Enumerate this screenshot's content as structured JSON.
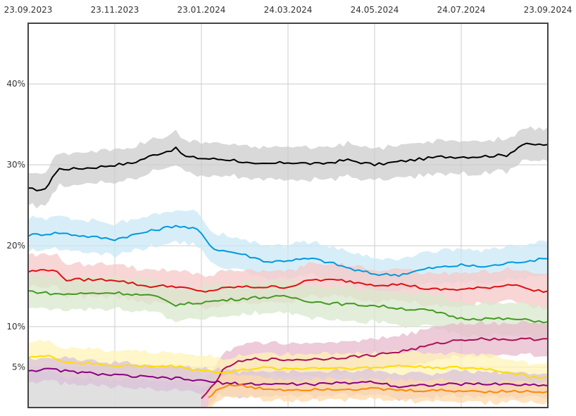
{
  "chart_data": {
    "type": "line",
    "title": "",
    "xlabel": "",
    "ylabel": "",
    "x_axis": {
      "position": "top",
      "tick_labels": [
        "23.09.2023",
        "23.11.2023",
        "23.01.2024",
        "24.03.2024",
        "24.05.2024",
        "24.07.2024",
        "23.09.2024"
      ]
    },
    "y_axis": {
      "position": "left",
      "range": [
        0,
        47.5
      ],
      "ticks": [
        {
          "value": 5,
          "label": "5%"
        },
        {
          "value": 10,
          "label": "10%"
        },
        {
          "value": 20,
          "label": "20%"
        },
        {
          "value": 30,
          "label": "30%"
        },
        {
          "value": 40,
          "label": "40%"
        }
      ]
    },
    "x_range": [
      "2023-09-23",
      "2024-09-23"
    ],
    "grid": true,
    "legend": "none",
    "band_shaded_region": {
      "color": "#dddddd",
      "until": "2024-01-23",
      "max": 5
    },
    "series": [
      {
        "color": "#000000",
        "band_color": "#cccccc",
        "band_halfwidth": 2.0,
        "points": [
          [
            "2023-09-23",
            27.0
          ],
          [
            "2023-10-05",
            26.9
          ],
          [
            "2023-10-10",
            28.5
          ],
          [
            "2023-10-15",
            29.5
          ],
          [
            "2023-10-25",
            29.5
          ],
          [
            "2023-11-10",
            29.7
          ],
          [
            "2023-11-23",
            30.0
          ],
          [
            "2023-12-05",
            30.2
          ],
          [
            "2023-12-20",
            31.2
          ],
          [
            "2024-01-05",
            32.0
          ],
          [
            "2024-01-12",
            31.0
          ],
          [
            "2024-01-23",
            30.8
          ],
          [
            "2024-02-15",
            30.6
          ],
          [
            "2024-03-01",
            30.0
          ],
          [
            "2024-03-24",
            30.3
          ],
          [
            "2024-04-15",
            30.1
          ],
          [
            "2024-05-05",
            30.6
          ],
          [
            "2024-05-24",
            30.0
          ],
          [
            "2024-06-15",
            30.5
          ],
          [
            "2024-07-10",
            31.0
          ],
          [
            "2024-08-01",
            31.0
          ],
          [
            "2024-08-25",
            31.2
          ],
          [
            "2024-09-05",
            32.5
          ],
          [
            "2024-09-23",
            32.5
          ]
        ]
      },
      {
        "color": "#0099dd",
        "band_color": "#c9e8f6",
        "band_halfwidth": 2.0,
        "points": [
          [
            "2023-09-23",
            21.3
          ],
          [
            "2023-10-15",
            21.6
          ],
          [
            "2023-11-01",
            21.2
          ],
          [
            "2023-11-23",
            20.8
          ],
          [
            "2023-12-10",
            21.5
          ],
          [
            "2024-01-05",
            22.5
          ],
          [
            "2024-01-20",
            22.0
          ],
          [
            "2024-02-01",
            19.6
          ],
          [
            "2024-02-20",
            19.0
          ],
          [
            "2024-03-10",
            18.0
          ],
          [
            "2024-03-24",
            18.2
          ],
          [
            "2024-04-10",
            18.4
          ],
          [
            "2024-04-25",
            17.8
          ],
          [
            "2024-05-10",
            17.0
          ],
          [
            "2024-05-24",
            16.5
          ],
          [
            "2024-06-10",
            16.4
          ],
          [
            "2024-07-01",
            17.2
          ],
          [
            "2024-07-24",
            17.6
          ],
          [
            "2024-08-10",
            17.4
          ],
          [
            "2024-09-01",
            18.0
          ],
          [
            "2024-09-23",
            18.4
          ]
        ]
      },
      {
        "color": "#dd1111",
        "band_color": "#f6c8c8",
        "band_halfwidth": 2.0,
        "points": [
          [
            "2023-09-23",
            16.8
          ],
          [
            "2023-10-10",
            17.1
          ],
          [
            "2023-10-20",
            15.8
          ],
          [
            "2023-11-23",
            15.8
          ],
          [
            "2023-12-15",
            15.0
          ],
          [
            "2024-01-05",
            15.0
          ],
          [
            "2024-01-23",
            14.3
          ],
          [
            "2024-02-15",
            14.9
          ],
          [
            "2024-03-24",
            14.9
          ],
          [
            "2024-04-10",
            15.8
          ],
          [
            "2024-05-01",
            15.7
          ],
          [
            "2024-05-24",
            15.2
          ],
          [
            "2024-06-15",
            15.2
          ],
          [
            "2024-07-01",
            14.6
          ],
          [
            "2024-07-24",
            14.6
          ],
          [
            "2024-08-10",
            14.8
          ],
          [
            "2024-09-01",
            15.3
          ],
          [
            "2024-09-10",
            14.5
          ],
          [
            "2024-09-23",
            14.4
          ]
        ]
      },
      {
        "color": "#449922",
        "band_color": "#d8e8cc",
        "band_halfwidth": 2.0,
        "points": [
          [
            "2023-09-23",
            14.4
          ],
          [
            "2023-10-15",
            14.0
          ],
          [
            "2023-11-23",
            14.2
          ],
          [
            "2023-12-20",
            13.8
          ],
          [
            "2024-01-05",
            12.7
          ],
          [
            "2024-01-23",
            13.0
          ],
          [
            "2024-02-10",
            13.3
          ],
          [
            "2024-03-01",
            13.6
          ],
          [
            "2024-03-24",
            13.7
          ],
          [
            "2024-04-10",
            13.1
          ],
          [
            "2024-05-01",
            12.8
          ],
          [
            "2024-05-24",
            12.6
          ],
          [
            "2024-06-15",
            12.2
          ],
          [
            "2024-07-01",
            12.0
          ],
          [
            "2024-07-24",
            11.0
          ],
          [
            "2024-08-10",
            11.0
          ],
          [
            "2024-09-01",
            10.9
          ],
          [
            "2024-09-23",
            10.6
          ]
        ]
      },
      {
        "color": "#aa1155",
        "band_color": "#e7b9cb",
        "band_halfwidth": 2.0,
        "start": "2024-01-23",
        "points": [
          [
            "2024-01-23",
            1.0
          ],
          [
            "2024-01-30",
            2.5
          ],
          [
            "2024-02-07",
            4.5
          ],
          [
            "2024-02-15",
            5.5
          ],
          [
            "2024-03-01",
            6.0
          ],
          [
            "2024-03-24",
            5.9
          ],
          [
            "2024-04-15",
            6.0
          ],
          [
            "2024-05-10",
            6.3
          ],
          [
            "2024-05-24",
            6.5
          ],
          [
            "2024-06-10",
            6.9
          ],
          [
            "2024-06-25",
            7.4
          ],
          [
            "2024-07-10",
            8.0
          ],
          [
            "2024-07-24",
            8.4
          ],
          [
            "2024-08-10",
            8.5
          ],
          [
            "2024-09-01",
            8.4
          ],
          [
            "2024-09-23",
            8.5
          ]
        ]
      },
      {
        "color": "#ffdd00",
        "band_color": "#fff3b8",
        "band_halfwidth": 1.8,
        "points": [
          [
            "2023-09-23",
            6.3
          ],
          [
            "2023-10-10",
            6.3
          ],
          [
            "2023-10-20",
            5.6
          ],
          [
            "2023-11-23",
            5.2
          ],
          [
            "2023-12-20",
            5.1
          ],
          [
            "2024-01-05",
            5.1
          ],
          [
            "2024-01-23",
            4.6
          ],
          [
            "2024-02-10",
            4.3
          ],
          [
            "2024-03-01",
            4.9
          ],
          [
            "2024-03-24",
            4.8
          ],
          [
            "2024-04-15",
            4.9
          ],
          [
            "2024-05-24",
            4.9
          ],
          [
            "2024-06-10",
            5.2
          ],
          [
            "2024-07-01",
            5.0
          ],
          [
            "2024-07-24",
            4.9
          ],
          [
            "2024-08-10",
            4.8
          ],
          [
            "2024-09-01",
            4.2
          ],
          [
            "2024-09-10",
            3.8
          ],
          [
            "2024-09-23",
            3.8
          ]
        ]
      },
      {
        "color": "#880088",
        "band_color": "#d9c2d9",
        "band_halfwidth": 1.5,
        "points": [
          [
            "2023-09-23",
            4.6
          ],
          [
            "2023-10-10",
            4.7
          ],
          [
            "2023-10-25",
            4.4
          ],
          [
            "2023-11-23",
            4.0
          ],
          [
            "2023-12-20",
            3.7
          ],
          [
            "2024-01-05",
            3.6
          ],
          [
            "2024-01-23",
            3.3
          ],
          [
            "2024-02-10",
            3.0
          ],
          [
            "2024-03-01",
            2.9
          ],
          [
            "2024-03-24",
            2.9
          ],
          [
            "2024-04-15",
            2.9
          ],
          [
            "2024-05-24",
            3.2
          ],
          [
            "2024-06-10",
            2.6
          ],
          [
            "2024-07-01",
            2.8
          ],
          [
            "2024-07-24",
            2.9
          ],
          [
            "2024-08-20",
            2.9
          ],
          [
            "2024-09-10",
            2.8
          ],
          [
            "2024-09-23",
            2.7
          ]
        ]
      },
      {
        "color": "#ff8800",
        "band_color": "#ffd9a8",
        "band_halfwidth": 1.3,
        "start": "2024-01-23",
        "points": [
          [
            "2024-01-28",
            1.2
          ],
          [
            "2024-02-05",
            2.5
          ],
          [
            "2024-02-15",
            2.8
          ],
          [
            "2024-03-01",
            2.4
          ],
          [
            "2024-03-24",
            2.2
          ],
          [
            "2024-04-15",
            2.3
          ],
          [
            "2024-05-24",
            2.3
          ],
          [
            "2024-06-15",
            2.1
          ],
          [
            "2024-07-10",
            2.1
          ],
          [
            "2024-08-10",
            2.0
          ],
          [
            "2024-09-23",
            2.0
          ]
        ]
      }
    ]
  }
}
